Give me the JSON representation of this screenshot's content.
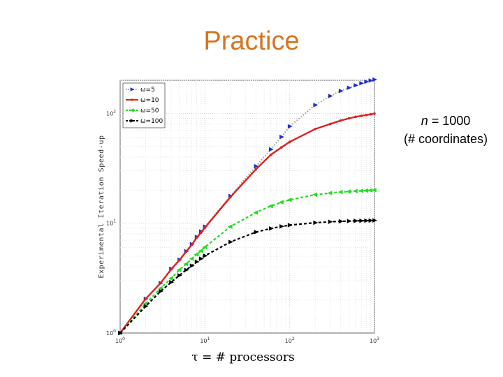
{
  "slide": {
    "title": "Practice",
    "note_line1_var": "n",
    "note_line1_rest": " = 1000",
    "note_line2": "(# coordinates)"
  },
  "chart_data": {
    "type": "line",
    "xscale": "log",
    "yscale": "log",
    "xlim": [
      1,
      1000
    ],
    "ylim": [
      1,
      200
    ],
    "x_ticks": [
      {
        "value": 1,
        "base": "10",
        "exp": "0"
      },
      {
        "value": 10,
        "base": "10",
        "exp": "1"
      },
      {
        "value": 100,
        "base": "10",
        "exp": "2"
      },
      {
        "value": 1000,
        "base": "10",
        "exp": "3"
      }
    ],
    "y_ticks": [
      {
        "value": 1,
        "base": "10",
        "exp": "0"
      },
      {
        "value": 10,
        "base": "10",
        "exp": "1"
      },
      {
        "value": 100,
        "base": "10",
        "exp": "2"
      }
    ],
    "xlabel": "τ = # processors",
    "ylabel": "Experimental Iteration Speed-up",
    "grid": true,
    "legend_position": "top-left",
    "series": [
      {
        "name": "ω=5",
        "color": "#1f2fd0",
        "line_style": "dotted",
        "line_color": "#9a9a9a",
        "marker": "triangle-right",
        "x": [
          1,
          2,
          3,
          4,
          5,
          6,
          7,
          8,
          9,
          10,
          20,
          40,
          60,
          80,
          100,
          200,
          300,
          400,
          500,
          600,
          700,
          800,
          900,
          1000
        ],
        "y": [
          1,
          2.05,
          2.85,
          3.85,
          4.65,
          5.55,
          6.45,
          7.5,
          8.4,
          9.3,
          17.7,
          33,
          47,
          61,
          76,
          119,
          144,
          160,
          171,
          180,
          188,
          194,
          199,
          203
        ]
      },
      {
        "name": "ω=10",
        "color": "#e02020",
        "line_style": "solid",
        "line_color": "#e02020",
        "marker": "dot",
        "x": [
          1,
          2,
          3,
          4,
          5,
          6,
          7,
          8,
          9,
          10,
          20,
          40,
          60,
          80,
          100,
          200,
          300,
          400,
          500,
          600,
          700,
          800,
          900,
          1000
        ],
        "y": [
          1,
          2.05,
          2.85,
          3.8,
          4.6,
          5.5,
          6.35,
          7.4,
          8.2,
          9.1,
          17.3,
          31,
          42,
          49,
          55,
          72,
          80,
          86,
          90,
          93,
          95,
          96.5,
          98,
          99.5
        ]
      },
      {
        "name": "ω=50",
        "color": "#22dd22",
        "line_style": "dashed",
        "line_color": "#22dd22",
        "marker": "triangle-left",
        "x": [
          1,
          2,
          3,
          4,
          5,
          6,
          7,
          8,
          9,
          10,
          20,
          40,
          60,
          80,
          100,
          200,
          300,
          400,
          500,
          600,
          700,
          800,
          900,
          1000
        ],
        "y": [
          1,
          1.85,
          2.55,
          3.15,
          3.75,
          4.25,
          4.75,
          5.2,
          5.6,
          6.05,
          9.3,
          12.5,
          14.3,
          15.5,
          16.3,
          18.2,
          18.8,
          19.2,
          19.4,
          19.6,
          19.7,
          19.8,
          19.9,
          20
        ]
      },
      {
        "name": "ω=100",
        "color": "#000000",
        "line_style": "dashed",
        "line_color": "#000000",
        "marker": "triangle-right",
        "x": [
          1,
          2,
          3,
          4,
          5,
          6,
          7,
          8,
          9,
          10,
          20,
          40,
          60,
          80,
          100,
          200,
          300,
          400,
          500,
          600,
          700,
          800,
          900,
          1000
        ],
        "y": [
          1,
          1.75,
          2.4,
          2.9,
          3.35,
          3.75,
          4.1,
          4.45,
          4.75,
          5.05,
          6.75,
          8.3,
          8.95,
          9.35,
          9.6,
          10.1,
          10.3,
          10.4,
          10.45,
          10.5,
          10.52,
          10.55,
          10.57,
          10.6
        ]
      }
    ]
  }
}
